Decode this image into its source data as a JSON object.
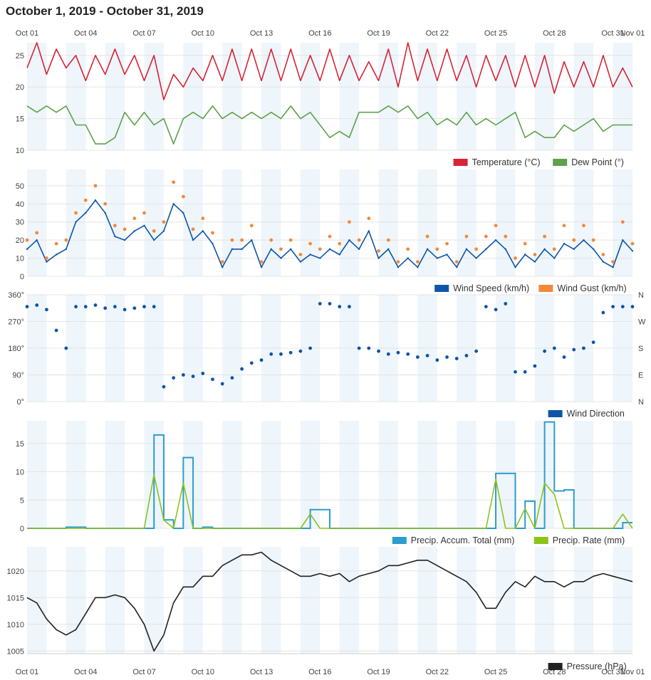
{
  "header": {
    "title": "October 1, 2019 - October 31, 2019"
  },
  "x_axis": {
    "ticks": [
      "Oct 01",
      "Oct 04",
      "Oct 07",
      "Oct 10",
      "Oct 13",
      "Oct 16",
      "Oct 19",
      "Oct 22",
      "Oct 25",
      "Oct 28",
      "Oct 31",
      "Nov 01"
    ]
  },
  "colors": {
    "temperature": "#d62433",
    "dew_point": "#5ea24a",
    "wind_speed": "#0d55a8",
    "wind_gust": "#f5873a",
    "wind_direction": "#0d55a8",
    "precip_accum": "#2e9ccc",
    "precip_rate": "#8cc31a",
    "pressure": "#222222",
    "band": "#eef5fb",
    "grid": "#e4e4e4"
  },
  "chart_data": [
    {
      "type": "line",
      "panel": "temperature",
      "ylim": [
        10,
        27
      ],
      "yticks": [
        "10",
        "15",
        "20",
        "25"
      ],
      "x": [
        1,
        1.5,
        2,
        2.5,
        3,
        3.5,
        4,
        4.5,
        5,
        5.5,
        6,
        6.5,
        7,
        7.5,
        8,
        8.5,
        9,
        9.5,
        10,
        10.5,
        11,
        11.5,
        12,
        12.5,
        13,
        13.5,
        14,
        14.5,
        15,
        15.5,
        16,
        16.5,
        17,
        17.5,
        18,
        18.5,
        19,
        19.5,
        20,
        20.5,
        21,
        21.5,
        22,
        22.5,
        23,
        23.5,
        24,
        24.5,
        25,
        25.5,
        26,
        26.5,
        27,
        27.5,
        28,
        28.5,
        29,
        29.5,
        30,
        30.5,
        31,
        31.5,
        32
      ],
      "series": [
        {
          "name": "Temperature (°C)",
          "values": [
            23,
            27,
            22,
            26,
            23,
            25,
            21,
            25,
            22,
            26,
            22,
            25,
            21,
            25,
            18,
            22,
            20,
            23,
            21,
            25,
            21,
            26,
            21,
            26,
            21,
            26,
            21,
            26,
            21,
            25,
            21,
            26,
            21,
            25,
            21,
            24,
            21,
            26,
            20,
            27,
            21,
            26,
            21,
            26,
            21,
            25,
            20,
            25,
            21,
            25,
            20,
            25,
            20,
            25,
            19,
            24,
            20,
            24,
            20,
            25,
            20,
            23,
            20
          ]
        },
        {
          "name": "Dew Point (°)",
          "values": [
            17,
            16,
            17,
            16,
            17,
            14,
            14,
            11,
            11,
            12,
            16,
            14,
            16,
            14,
            15,
            11,
            15,
            16,
            15,
            17,
            15,
            16,
            15,
            16,
            15,
            16,
            15,
            17,
            15,
            16,
            14,
            12,
            13,
            12,
            16,
            16,
            16,
            17,
            16,
            17,
            15,
            16,
            14,
            15,
            14,
            16,
            14,
            15,
            14,
            15,
            16,
            12,
            13,
            12,
            12,
            14,
            13,
            14,
            15,
            13,
            14,
            14,
            14
          ]
        }
      ]
    },
    {
      "type": "scatter",
      "panel": "wind",
      "ylim": [
        0,
        59
      ],
      "yticks": [
        "0",
        "10",
        "20",
        "30",
        "40",
        "50"
      ],
      "x": [
        1,
        1.5,
        2,
        2.5,
        3,
        3.5,
        4,
        4.5,
        5,
        5.5,
        6,
        6.5,
        7,
        7.5,
        8,
        8.5,
        9,
        9.5,
        10,
        10.5,
        11,
        11.5,
        12,
        12.5,
        13,
        13.5,
        14,
        14.5,
        15,
        15.5,
        16,
        16.5,
        17,
        17.5,
        18,
        18.5,
        19,
        19.5,
        20,
        20.5,
        21,
        21.5,
        22,
        22.5,
        23,
        23.5,
        24,
        24.5,
        25,
        25.5,
        26,
        26.5,
        27,
        27.5,
        28,
        28.5,
        29,
        29.5,
        30,
        30.5,
        31,
        31.5,
        32
      ],
      "series": [
        {
          "name": "Wind Speed (km/h)",
          "values": [
            15,
            20,
            8,
            12,
            15,
            30,
            35,
            42,
            35,
            22,
            20,
            25,
            28,
            20,
            25,
            40,
            35,
            20,
            25,
            18,
            5,
            15,
            15,
            20,
            5,
            15,
            10,
            15,
            8,
            12,
            10,
            15,
            12,
            20,
            15,
            25,
            10,
            15,
            5,
            10,
            5,
            15,
            10,
            12,
            5,
            15,
            10,
            15,
            20,
            15,
            5,
            12,
            8,
            15,
            10,
            18,
            15,
            20,
            15,
            8,
            5,
            20,
            14
          ]
        },
        {
          "name": "Wind Gust (km/h)",
          "values": [
            20,
            24,
            10,
            18,
            20,
            35,
            42,
            50,
            40,
            28,
            26,
            32,
            35,
            25,
            30,
            52,
            44,
            26,
            32,
            24,
            8,
            20,
            20,
            28,
            8,
            20,
            15,
            20,
            12,
            18,
            15,
            22,
            18,
            30,
            20,
            32,
            14,
            20,
            8,
            15,
            8,
            22,
            15,
            18,
            8,
            22,
            15,
            22,
            28,
            22,
            10,
            18,
            12,
            22,
            15,
            28,
            20,
            28,
            20,
            12,
            8,
            30,
            18
          ]
        }
      ]
    },
    {
      "type": "scatter",
      "panel": "wind_direction",
      "ylim": [
        0,
        360
      ],
      "yticks": [
        "0°",
        "90°",
        "180°",
        "270°",
        "360°"
      ],
      "compass": [
        "N",
        "E",
        "S",
        "W",
        "N"
      ],
      "x": [
        1,
        1.5,
        2,
        2.5,
        3,
        3.5,
        4,
        4.5,
        5,
        5.5,
        6,
        6.5,
        7,
        7.5,
        8,
        8.5,
        9,
        9.5,
        10,
        10.5,
        11,
        11.5,
        12,
        12.5,
        13,
        13.5,
        14,
        14.5,
        15,
        15.5,
        16,
        16.5,
        17,
        17.5,
        18,
        18.5,
        19,
        19.5,
        20,
        20.5,
        21,
        21.5,
        22,
        22.5,
        23,
        23.5,
        24,
        24.5,
        25,
        25.5,
        26,
        26.5,
        27,
        27.5,
        28,
        28.5,
        29,
        29.5,
        30,
        30.5,
        31,
        31.5,
        32
      ],
      "series": [
        {
          "name": "Wind Direction",
          "values": [
            320,
            325,
            310,
            240,
            180,
            320,
            320,
            325,
            315,
            320,
            310,
            315,
            320,
            320,
            50,
            80,
            90,
            85,
            95,
            75,
            60,
            80,
            110,
            130,
            140,
            160,
            160,
            165,
            170,
            180,
            330,
            330,
            320,
            320,
            180,
            180,
            170,
            160,
            165,
            160,
            150,
            155,
            140,
            150,
            145,
            155,
            170,
            320,
            310,
            330,
            100,
            100,
            120,
            170,
            180,
            150,
            175,
            180,
            200,
            300,
            320,
            320,
            320
          ]
        }
      ]
    },
    {
      "type": "line",
      "panel": "precipitation",
      "ylim": [
        0,
        19
      ],
      "yticks": [
        "0",
        "5",
        "10",
        "15"
      ],
      "x": [
        1,
        1.5,
        2,
        2.5,
        3,
        3.5,
        4,
        4.5,
        5,
        5.5,
        6,
        6.5,
        7,
        7.5,
        8,
        8.5,
        9,
        9.5,
        10,
        10.5,
        11,
        11.5,
        12,
        12.5,
        13,
        13.5,
        14,
        14.5,
        15,
        15.5,
        16,
        16.5,
        17,
        17.5,
        18,
        18.5,
        19,
        19.5,
        20,
        20.5,
        21,
        21.5,
        22,
        22.5,
        23,
        23.5,
        24,
        24.5,
        25,
        25.5,
        26,
        26.5,
        27,
        27.5,
        28,
        28.5,
        29,
        29.5,
        30,
        30.5,
        31,
        31.5,
        32
      ],
      "series": [
        {
          "name": "Precip. Accum. Total (mm)",
          "values": [
            0,
            0,
            0,
            0,
            0.2,
            0.2,
            0,
            0,
            0,
            0,
            0,
            0,
            0,
            16.5,
            1.5,
            0,
            12.5,
            0,
            0.2,
            0,
            0,
            0,
            0,
            0,
            0,
            0,
            0,
            0,
            0,
            3.3,
            3.3,
            0,
            0,
            0,
            0,
            0,
            0,
            0,
            0,
            0,
            0,
            0,
            0,
            0,
            0,
            0,
            0,
            0,
            9.7,
            9.7,
            0,
            4.8,
            0,
            18.8,
            6.6,
            6.8,
            0,
            0,
            0,
            0,
            0,
            1.0,
            1.0
          ]
        },
        {
          "name": "Precip. Rate (mm)",
          "values": [
            0,
            0,
            0,
            0,
            0,
            0,
            0,
            0,
            0,
            0,
            0,
            0,
            0,
            9.5,
            1.5,
            0,
            8,
            0,
            0,
            0,
            0,
            0,
            0,
            0,
            0,
            0,
            0,
            0,
            0,
            2.5,
            0,
            0,
            0,
            0,
            0,
            0,
            0,
            0,
            0,
            0,
            0,
            0,
            0,
            0,
            0,
            0,
            0,
            0,
            8.7,
            0,
            0,
            3.5,
            0,
            8,
            6,
            0,
            0,
            0,
            0,
            0,
            0,
            2.5,
            0
          ]
        }
      ]
    },
    {
      "type": "line",
      "panel": "pressure",
      "ylim": [
        1004.5,
        1024.5
      ],
      "yticks": [
        "1005",
        "1010",
        "1015",
        "1020"
      ],
      "x": [
        1,
        1.5,
        2,
        2.5,
        3,
        3.5,
        4,
        4.5,
        5,
        5.5,
        6,
        6.5,
        7,
        7.5,
        8,
        8.5,
        9,
        9.5,
        10,
        10.5,
        11,
        11.5,
        12,
        12.5,
        13,
        13.5,
        14,
        14.5,
        15,
        15.5,
        16,
        16.5,
        17,
        17.5,
        18,
        18.5,
        19,
        19.5,
        20,
        20.5,
        21,
        21.5,
        22,
        22.5,
        23,
        23.5,
        24,
        24.5,
        25,
        25.5,
        26,
        26.5,
        27,
        27.5,
        28,
        28.5,
        29,
        29.5,
        30,
        30.5,
        31,
        31.5,
        32
      ],
      "series": [
        {
          "name": "Pressure (hPa)",
          "values": [
            1015,
            1014,
            1011,
            1009,
            1008,
            1009,
            1012,
            1015,
            1015,
            1015.5,
            1015,
            1013,
            1010,
            1005,
            1008,
            1014,
            1017,
            1017,
            1019,
            1019,
            1021,
            1022,
            1023,
            1023,
            1023.5,
            1022,
            1021,
            1020,
            1019,
            1019,
            1019.5,
            1019,
            1019.5,
            1018,
            1019,
            1019.5,
            1020,
            1021,
            1021,
            1021.5,
            1022,
            1022,
            1021,
            1020,
            1019,
            1018,
            1016,
            1013,
            1013,
            1016,
            1018,
            1017,
            1019,
            1018,
            1018,
            1017,
            1018,
            1018,
            1019,
            1019.5,
            1019,
            1018.5,
            1018
          ]
        }
      ]
    }
  ]
}
